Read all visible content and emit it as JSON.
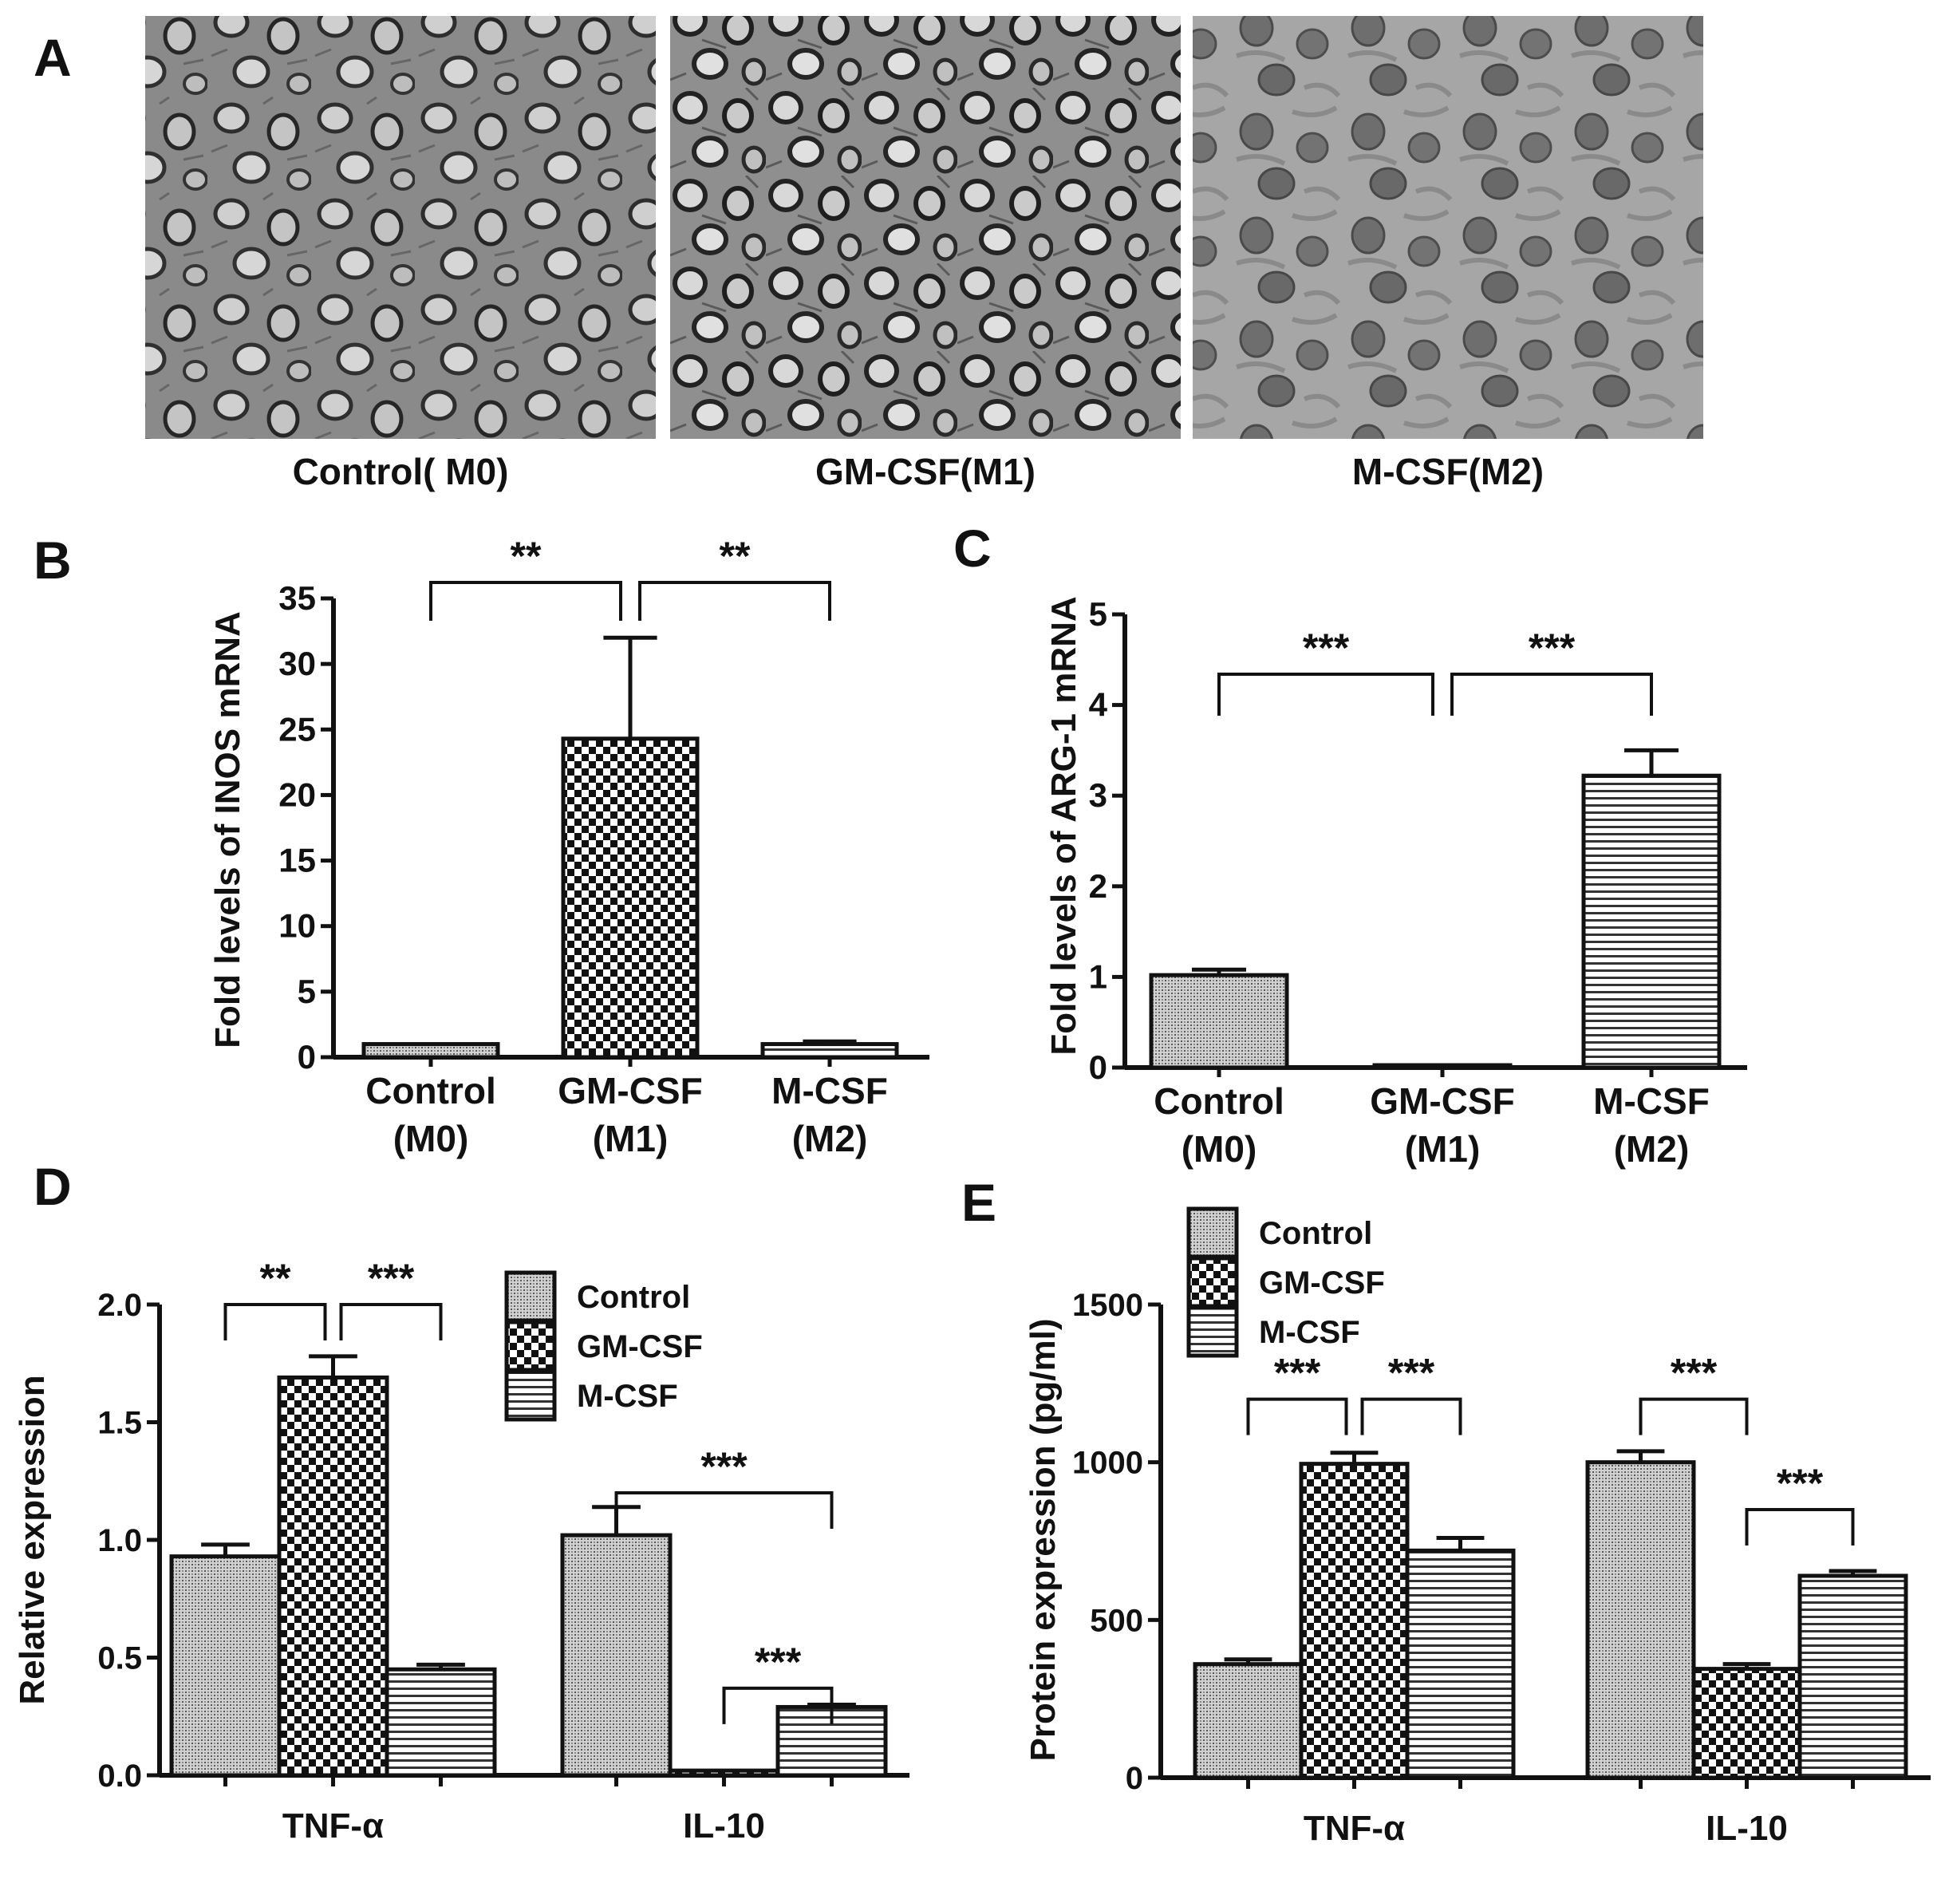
{
  "panel_a": {
    "letter": "A",
    "images": [
      {
        "caption": "Control( M0)",
        "style": "m0"
      },
      {
        "caption": "GM-CSF(M1)",
        "style": "m1"
      },
      {
        "caption": "M-CSF(M2)",
        "style": "m2"
      }
    ]
  },
  "chart_data": [
    {
      "panel": "B",
      "type": "bar",
      "ylabel": "Fold levels of INOS mRNA",
      "ylim": [
        0,
        35
      ],
      "yticks": [
        "0",
        "5",
        "10",
        "15",
        "20",
        "25",
        "30",
        "35"
      ],
      "categories": [
        [
          "Control",
          "(M0)"
        ],
        [
          "GM-CSF",
          "(M1)"
        ],
        [
          "M-CSF",
          "(M2)"
        ]
      ],
      "series": [
        {
          "values": [
            1.0,
            24.3,
            1.0
          ],
          "errors": [
            0.1,
            7.7,
            0.2
          ],
          "patterns": [
            "dots",
            "checker",
            "hstripes"
          ]
        }
      ],
      "significance": [
        {
          "from": 0,
          "to": 1,
          "label": "**"
        },
        {
          "from": 1,
          "to": 2,
          "label": "**"
        }
      ]
    },
    {
      "panel": "C",
      "type": "bar",
      "ylabel": "Fold levels of ARG-1  mRNA",
      "ylim": [
        0,
        5
      ],
      "yticks": [
        "0",
        "1",
        "2",
        "3",
        "4",
        "5"
      ],
      "categories": [
        [
          "Control",
          "(M0)"
        ],
        [
          "GM-CSF",
          "(M1)"
        ],
        [
          "M-CSF",
          "(M2)"
        ]
      ],
      "series": [
        {
          "values": [
            1.02,
            0.02,
            3.22
          ],
          "errors": [
            0.06,
            0.0,
            0.28
          ],
          "patterns": [
            "dots",
            "checker",
            "hstripes"
          ]
        }
      ],
      "significance": [
        {
          "from": 0,
          "to": 1,
          "label": "***"
        },
        {
          "from": 1,
          "to": 2,
          "label": "***"
        }
      ]
    },
    {
      "panel": "D",
      "type": "bar",
      "ylabel": "Relative expression",
      "ylim": [
        0,
        2.0
      ],
      "yticks": [
        "0.0",
        "0.5",
        "1.0",
        "1.5",
        "2.0"
      ],
      "categories": [
        "TNF-α",
        "IL-10"
      ],
      "legend": [
        "Control",
        "GM-CSF",
        "M-CSF"
      ],
      "series": [
        {
          "name": "Control",
          "pattern": "dots",
          "values": [
            0.93,
            1.02
          ],
          "errors": [
            0.05,
            0.12
          ]
        },
        {
          "name": "GM-CSF",
          "pattern": "checker",
          "values": [
            1.69,
            0.02
          ],
          "errors": [
            0.09,
            0.0
          ]
        },
        {
          "name": "M-CSF",
          "pattern": "hstripes",
          "values": [
            0.45,
            0.29
          ],
          "errors": [
            0.02,
            0.01
          ]
        }
      ],
      "significance": [
        {
          "group": 0,
          "from": 0,
          "to": 1,
          "label": "**",
          "y": 2.0
        },
        {
          "group": 0,
          "from": 1,
          "to": 2,
          "label": "***",
          "y": 2.0
        },
        {
          "group": 1,
          "from": 0,
          "to": 2,
          "label": "***",
          "y": 1.2
        },
        {
          "group": 1,
          "from": 1,
          "to": 2,
          "label": "***",
          "y": 0.37
        }
      ]
    },
    {
      "panel": "E",
      "type": "bar",
      "ylabel": "Protein expression (pg/ml)",
      "ylim": [
        0,
        1500
      ],
      "yticks": [
        "0",
        "500",
        "1000",
        "1500"
      ],
      "categories": [
        "TNF-α",
        "IL-10"
      ],
      "legend": [
        "Control",
        "GM-CSF",
        "M-CSF"
      ],
      "series": [
        {
          "name": "Control",
          "pattern": "dots",
          "values": [
            360,
            1000
          ],
          "errors": [
            15,
            35
          ]
        },
        {
          "name": "GM-CSF",
          "pattern": "checker",
          "values": [
            995,
            345
          ],
          "errors": [
            35,
            15
          ]
        },
        {
          "name": "M-CSF",
          "pattern": "hstripes",
          "values": [
            720,
            640
          ],
          "errors": [
            40,
            15
          ]
        }
      ],
      "significance": [
        {
          "group": 0,
          "from": 0,
          "to": 1,
          "label": "***",
          "y": 1200
        },
        {
          "group": 0,
          "from": 1,
          "to": 2,
          "label": "***",
          "y": 1200
        },
        {
          "group": 1,
          "from": 0,
          "to": 1,
          "label": "***",
          "y": 1200
        },
        {
          "group": 1,
          "from": 1,
          "to": 2,
          "label": "***",
          "y": 850
        }
      ]
    }
  ]
}
